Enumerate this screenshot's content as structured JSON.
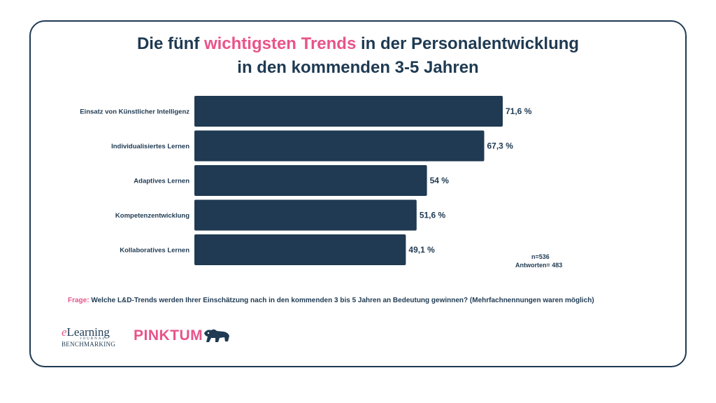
{
  "title": {
    "line1_pre": "Die fünf ",
    "line1_highlight": "wichtigsten Trends",
    "line1_post": " in der Personalentwicklung",
    "line2": "in den kommenden 3-5 Jahren"
  },
  "chart_data": {
    "type": "bar",
    "orientation": "horizontal",
    "categories": [
      "Einsatz von Künstlicher Intelligenz",
      "Individualisiertes Lernen",
      "Adaptives Lernen",
      "Kompetenzentwicklung",
      "Kollaboratives Lernen"
    ],
    "values": [
      71.6,
      67.3,
      54,
      51.6,
      49.1
    ],
    "value_labels": [
      "71,6 %",
      "67,3 %",
      "54 %",
      "51,6 %",
      "49,1 %"
    ],
    "bar_color": "#1f3a52",
    "grid": false
  },
  "notes": {
    "n": "n=536",
    "answers": "Antworten= 483"
  },
  "question": {
    "label": "Frage:",
    "text": " Welche L&D-Trends werden Ihrer Einschätzung nach in den kommenden 3 bis 5 Jahren an Bedeutung gewinnen? (Mehrfachnennungen waren möglich)"
  },
  "logos": {
    "elearning_line1_e": "e",
    "elearning_line1_rest": "Learning",
    "elearning_line2": "JOURNAL",
    "elearning_line3": "BENCHMARKING",
    "pinktum": "PINKTUM"
  },
  "colors": {
    "primary": "#1f3a52",
    "accent": "#e8548a"
  }
}
